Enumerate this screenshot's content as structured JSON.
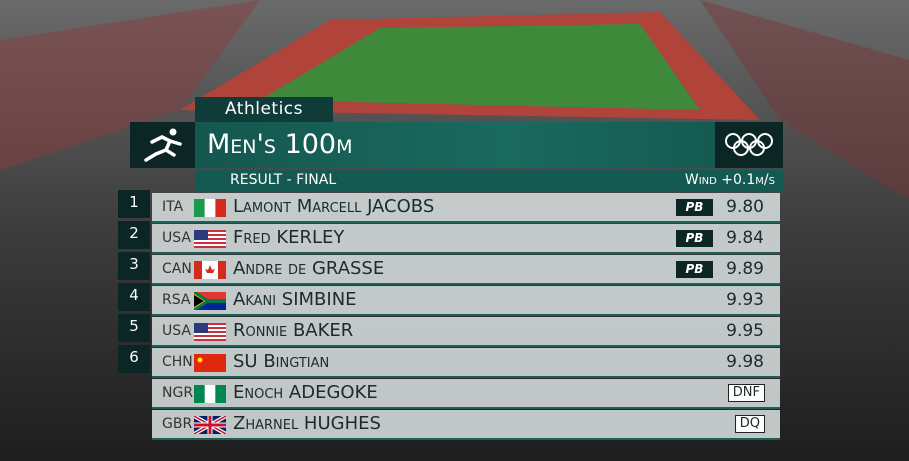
{
  "header": {
    "sport": "Athletics",
    "event": "Men's 100m",
    "subtitle": "RESULT - FINAL",
    "wind": "Wind +0.1m/s"
  },
  "rows": [
    {
      "rank": "1",
      "country": "ITA",
      "name": "Lamont Marcell JACOBS",
      "badge": "PB",
      "time": "9.80"
    },
    {
      "rank": "2",
      "country": "USA",
      "name": "Fred KERLEY",
      "badge": "PB",
      "time": "9.84"
    },
    {
      "rank": "3",
      "country": "CAN",
      "name": "Andre de GRASSE",
      "badge": "PB",
      "time": "9.89"
    },
    {
      "rank": "4",
      "country": "RSA",
      "name": "Akani SIMBINE",
      "time": "9.93"
    },
    {
      "rank": "5",
      "country": "USA",
      "name": "Ronnie BAKER",
      "time": "9.95"
    },
    {
      "rank": "6",
      "country": "CHN",
      "name": "SU Bingtian",
      "time": "9.98"
    },
    {
      "country": "NGR",
      "name": "Enoch ADEGOKE",
      "status": "DNF"
    },
    {
      "country": "GBR",
      "name": "Zharnel HUGHES",
      "status": "DQ"
    }
  ]
}
